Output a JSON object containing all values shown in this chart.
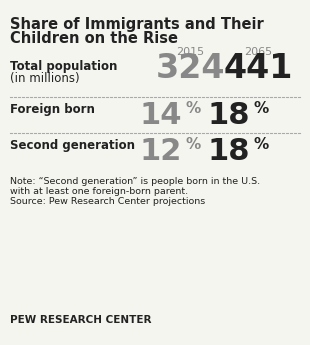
{
  "title_line1": "Share of Immigrants and Their",
  "title_line2": "Children on the Rise",
  "col_headers": [
    "2015",
    "2065"
  ],
  "row1_label1": "Total population",
  "row1_label2": "(in millions)",
  "row1_val1": "324",
  "row1_val2": "441",
  "row2_label": "Foreign born",
  "row2_num1": "14",
  "row2_num2": "18",
  "row3_label": "Second generation",
  "row3_num1": "12",
  "row3_num2": "18",
  "note_line1": "Note: “Second generation” is people born in the U.S.",
  "note_line2": "with at least one foreign-born parent.",
  "note_line3": "Source: Pew Research Center projections",
  "footer": "PEW RESEARCH CENTER",
  "bg_color": "#f5f5f0",
  "gray_color": "#888888",
  "dark_color": "#222222",
  "dot_color": "#aaaaaa"
}
